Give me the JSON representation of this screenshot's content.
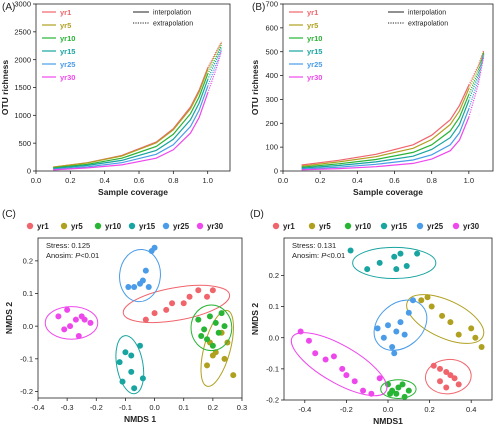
{
  "figure": {
    "panel_labels": [
      "(A)",
      "(B)",
      "(C)",
      "(D)"
    ]
  },
  "legend_line_styles": [
    {
      "label": "interpolation",
      "style": "solid"
    },
    {
      "label": "extrapolation",
      "style": "dotted"
    }
  ],
  "group_colors": {
    "yr1": "#f0646c",
    "yr5": "#b0a020",
    "yr10": "#28b434",
    "yr15": "#18a4a0",
    "yr25": "#4a9ce8",
    "yr30": "#ee48ec"
  },
  "chart_data": [
    {
      "panel": "(A)",
      "type": "line",
      "xlabel": "Sample coverage",
      "ylabel": "OTU richness",
      "xlim": [
        0.0,
        1.13
      ],
      "ylim": [
        0,
        3000
      ],
      "xticks": [
        "0.0",
        "0.2",
        "0.4",
        "0.6",
        "0.8",
        "1.0"
      ],
      "yticks": [
        "0",
        "500",
        "1000",
        "1500",
        "2000",
        "2500",
        "3000"
      ],
      "legend_position": "top-left",
      "series": [
        {
          "name": "yr1",
          "x": [
            0.1,
            0.3,
            0.5,
            0.7,
            0.8,
            0.9,
            0.95,
            1.0,
            1.05,
            1.08
          ],
          "y": [
            70,
            150,
            280,
            520,
            760,
            1150,
            1450,
            1850,
            2150,
            2320
          ]
        },
        {
          "name": "yr5",
          "x": [
            0.1,
            0.3,
            0.5,
            0.7,
            0.8,
            0.9,
            0.95,
            1.0,
            1.05,
            1.08
          ],
          "y": [
            70,
            145,
            270,
            505,
            740,
            1120,
            1420,
            1820,
            2120,
            2300
          ]
        },
        {
          "name": "yr10",
          "x": [
            0.1,
            0.3,
            0.5,
            0.7,
            0.8,
            0.9,
            0.95,
            1.0,
            1.05,
            1.08
          ],
          "y": [
            55,
            120,
            230,
            440,
            660,
            1030,
            1330,
            1740,
            2060,
            2260
          ]
        },
        {
          "name": "yr15",
          "x": [
            0.1,
            0.3,
            0.5,
            0.7,
            0.8,
            0.9,
            0.95,
            1.0,
            1.05,
            1.08
          ],
          "y": [
            45,
            100,
            190,
            370,
            570,
            920,
            1220,
            1640,
            2000,
            2230
          ]
        },
        {
          "name": "yr25",
          "x": [
            0.1,
            0.3,
            0.5,
            0.7,
            0.8,
            0.9,
            0.95,
            1.0,
            1.05,
            1.08
          ],
          "y": [
            30,
            75,
            150,
            300,
            470,
            800,
            1090,
            1520,
            1920,
            2180
          ]
        },
        {
          "name": "yr30",
          "x": [
            0.1,
            0.3,
            0.5,
            0.7,
            0.8,
            0.9,
            0.95,
            1.0,
            1.05,
            1.08
          ],
          "y": [
            20,
            55,
            110,
            230,
            380,
            680,
            960,
            1400,
            1840,
            2150
          ]
        }
      ]
    },
    {
      "panel": "(B)",
      "type": "line",
      "xlabel": "Sample coverage",
      "ylabel": "OTU richness",
      "xlim": [
        0.0,
        1.13
      ],
      "ylim": [
        0,
        700
      ],
      "xticks": [
        "0.0",
        "0.2",
        "0.4",
        "0.6",
        "0.8",
        "1.0"
      ],
      "yticks": [
        "0",
        "100",
        "200",
        "300",
        "400",
        "500",
        "600",
        "700"
      ],
      "legend_position": "top-left",
      "series": [
        {
          "name": "yr1",
          "x": [
            0.1,
            0.3,
            0.5,
            0.7,
            0.8,
            0.9,
            0.95,
            1.0,
            1.05,
            1.08
          ],
          "y": [
            25,
            45,
            70,
            110,
            150,
            215,
            275,
            360,
            440,
            505
          ]
        },
        {
          "name": "yr5",
          "x": [
            0.1,
            0.3,
            0.5,
            0.7,
            0.8,
            0.9,
            0.95,
            1.0,
            1.05,
            1.08
          ],
          "y": [
            20,
            38,
            60,
            95,
            132,
            195,
            252,
            345,
            430,
            500
          ]
        },
        {
          "name": "yr10",
          "x": [
            0.1,
            0.3,
            0.5,
            0.7,
            0.8,
            0.9,
            0.95,
            1.0,
            1.05,
            1.08
          ],
          "y": [
            16,
            30,
            48,
            78,
            110,
            168,
            225,
            320,
            415,
            495
          ]
        },
        {
          "name": "yr15",
          "x": [
            0.1,
            0.3,
            0.5,
            0.7,
            0.8,
            0.9,
            0.95,
            1.0,
            1.05,
            1.08
          ],
          "y": [
            12,
            23,
            38,
            62,
            90,
            140,
            195,
            295,
            400,
            490
          ]
        },
        {
          "name": "yr25",
          "x": [
            0.1,
            0.3,
            0.5,
            0.7,
            0.8,
            0.9,
            0.95,
            1.0,
            1.05,
            1.08
          ],
          "y": [
            8,
            16,
            28,
            46,
            68,
            110,
            160,
            260,
            380,
            485
          ]
        },
        {
          "name": "yr30",
          "x": [
            0.1,
            0.3,
            0.5,
            0.7,
            0.8,
            0.9,
            0.95,
            1.0,
            1.05,
            1.08
          ],
          "y": [
            5,
            10,
            18,
            32,
            50,
            85,
            130,
            225,
            360,
            480
          ]
        }
      ]
    },
    {
      "panel": "(C)",
      "type": "scatter",
      "xlabel": "NMDS 1",
      "ylabel": "NMDS 2",
      "xlim": [
        -0.4,
        0.3
      ],
      "ylim": [
        -0.22,
        0.27
      ],
      "xticks": [
        "-0.4",
        "-0.3",
        "-0.2",
        "-0.1",
        "0.0",
        "0.1",
        "0.2",
        "0.3"
      ],
      "yticks": [
        "-0.2",
        "-0.1",
        "0.0",
        "0.1",
        "0.2"
      ],
      "annotations": [
        "Stress: 0.125",
        "Anosim: P<0.01"
      ],
      "legend_position": "top",
      "series": [
        {
          "name": "yr1",
          "ellipse": {
            "cx": 0.075,
            "cy": 0.068,
            "rx": 0.185,
            "ry": 0.05,
            "angle_deg": 10
          },
          "points": [
            [
              -0.03,
              0.02
            ],
            [
              0.0,
              0.04
            ],
            [
              0.04,
              0.05
            ],
            [
              0.06,
              0.07
            ],
            [
              0.1,
              0.07
            ],
            [
              0.12,
              0.09
            ],
            [
              0.15,
              0.11
            ],
            [
              0.18,
              0.09
            ],
            [
              0.2,
              0.11
            ]
          ]
        },
        {
          "name": "yr5",
          "ellipse": {
            "cx": 0.215,
            "cy": -0.068,
            "rx": 0.045,
            "ry": 0.12,
            "angle_deg": -15
          },
          "points": [
            [
              0.19,
              -0.05
            ],
            [
              0.21,
              -0.08
            ],
            [
              0.23,
              -0.02
            ],
            [
              0.18,
              -0.12
            ],
            [
              0.2,
              -0.09
            ],
            [
              0.25,
              -0.05
            ],
            [
              0.27,
              -0.15
            ],
            [
              0.24,
              -0.1
            ]
          ]
        },
        {
          "name": "yr10",
          "ellipse": {
            "cx": 0.195,
            "cy": -0.005,
            "rx": 0.07,
            "ry": 0.07,
            "angle_deg": 0
          },
          "points": [
            [
              0.15,
              0.02
            ],
            [
              0.17,
              -0.01
            ],
            [
              0.19,
              0.03
            ],
            [
              0.21,
              0.01
            ],
            [
              0.23,
              0.04
            ],
            [
              0.18,
              -0.04
            ],
            [
              0.2,
              -0.06
            ],
            [
              0.16,
              -0.03
            ],
            [
              0.22,
              -0.02
            ],
            [
              0.24,
              0.0
            ]
          ]
        },
        {
          "name": "yr15",
          "ellipse": {
            "cx": -0.085,
            "cy": -0.118,
            "rx": 0.045,
            "ry": 0.09,
            "angle_deg": 10
          },
          "points": [
            [
              -0.1,
              -0.08
            ],
            [
              -0.08,
              -0.09
            ],
            [
              -0.05,
              -0.06
            ],
            [
              -0.12,
              -0.11
            ],
            [
              -0.08,
              -0.14
            ],
            [
              -0.11,
              -0.17
            ],
            [
              -0.07,
              -0.19
            ],
            [
              -0.04,
              -0.16
            ]
          ]
        },
        {
          "name": "yr25",
          "ellipse": {
            "cx": -0.05,
            "cy": 0.155,
            "rx": 0.07,
            "ry": 0.08,
            "angle_deg": -5
          },
          "points": [
            [
              -0.09,
              0.12
            ],
            [
              -0.07,
              0.12
            ],
            [
              -0.05,
              0.13
            ],
            [
              -0.04,
              0.14
            ],
            [
              -0.03,
              0.17
            ],
            [
              -0.02,
              0.12
            ],
            [
              -0.01,
              0.23
            ],
            [
              0.0,
              0.24
            ]
          ]
        },
        {
          "name": "yr30",
          "ellipse": {
            "cx": -0.285,
            "cy": 0.01,
            "rx": 0.09,
            "ry": 0.05,
            "angle_deg": 0
          },
          "points": [
            [
              -0.33,
              0.03
            ],
            [
              -0.3,
              0.05
            ],
            [
              -0.27,
              0.02
            ],
            [
              -0.25,
              0.03
            ],
            [
              -0.24,
              0.02
            ],
            [
              -0.29,
              0.0
            ],
            [
              -0.31,
              -0.01
            ],
            [
              -0.26,
              -0.03
            ],
            [
              -0.22,
              0.01
            ]
          ]
        }
      ]
    },
    {
      "panel": "(D)",
      "type": "scatter",
      "xlabel": "NMDS1",
      "ylabel": "NMDS 2",
      "xlim": [
        -0.5,
        0.5
      ],
      "ylim": [
        -0.2,
        0.32
      ],
      "xticks": [
        "-0.4",
        "-0.2",
        "0.0",
        "0.2",
        "0.4"
      ],
      "yticks": [
        "-0.2",
        "-0.1",
        "0.0",
        "0.1",
        "0.2"
      ],
      "annotations": [
        "Stress: 0.131",
        "Anosim: P<0.01"
      ],
      "legend_position": "top",
      "series": [
        {
          "name": "yr1",
          "ellipse": {
            "cx": 0.29,
            "cy": -0.125,
            "rx": 0.11,
            "ry": 0.055,
            "angle_deg": 5
          },
          "points": [
            [
              0.22,
              -0.09
            ],
            [
              0.25,
              -0.1
            ],
            [
              0.28,
              -0.11
            ],
            [
              0.3,
              -0.12
            ],
            [
              0.32,
              -0.13
            ],
            [
              0.34,
              -0.15
            ],
            [
              0.28,
              -0.16
            ],
            [
              0.25,
              -0.14
            ]
          ]
        },
        {
          "name": "yr5",
          "ellipse": {
            "cx": 0.275,
            "cy": 0.06,
            "rx": 0.2,
            "ry": 0.06,
            "angle_deg": -25
          },
          "points": [
            [
              0.16,
              0.12
            ],
            [
              0.19,
              0.13
            ],
            [
              0.21,
              0.1
            ],
            [
              0.26,
              0.07
            ],
            [
              0.3,
              0.05
            ],
            [
              0.34,
              0.01
            ],
            [
              0.4,
              0.03
            ],
            [
              0.42,
              0.0
            ],
            [
              0.45,
              -0.03
            ]
          ]
        },
        {
          "name": "yr10",
          "ellipse": {
            "cx": 0.05,
            "cy": -0.165,
            "rx": 0.085,
            "ry": 0.03,
            "angle_deg": 0
          },
          "points": [
            [
              0.0,
              -0.15
            ],
            [
              0.02,
              -0.17
            ],
            [
              0.05,
              -0.16
            ],
            [
              0.07,
              -0.15
            ],
            [
              0.1,
              -0.17
            ],
            [
              0.04,
              -0.18
            ],
            [
              0.08,
              -0.19
            ],
            [
              0.01,
              -0.18
            ]
          ]
        },
        {
          "name": "yr15",
          "ellipse": {
            "cx": 0.03,
            "cy": 0.24,
            "rx": 0.2,
            "ry": 0.05,
            "angle_deg": 0
          },
          "points": [
            [
              -0.18,
              0.28
            ],
            [
              -0.1,
              0.22
            ],
            [
              -0.04,
              0.24
            ],
            [
              0.03,
              0.26
            ],
            [
              0.04,
              0.22
            ],
            [
              0.06,
              0.27
            ],
            [
              0.09,
              0.23
            ],
            [
              0.14,
              0.27
            ]
          ]
        },
        {
          "name": "yr25",
          "ellipse": {
            "cx": 0.06,
            "cy": 0.04,
            "rx": 0.14,
            "ry": 0.07,
            "angle_deg": 40
          },
          "points": [
            [
              -0.05,
              0.03
            ],
            [
              -0.02,
              0.0
            ],
            [
              0.0,
              0.04
            ],
            [
              0.02,
              -0.03
            ],
            [
              0.04,
              0.02
            ],
            [
              0.06,
              0.05
            ],
            [
              0.08,
              0.01
            ],
            [
              0.1,
              0.08
            ],
            [
              0.12,
              0.12
            ],
            [
              0.03,
              -0.05
            ]
          ]
        },
        {
          "name": "yr30",
          "ellipse": {
            "cx": -0.235,
            "cy": -0.085,
            "rx": 0.26,
            "ry": 0.06,
            "angle_deg": -30
          },
          "points": [
            [
              -0.42,
              0.02
            ],
            [
              -0.38,
              -0.01
            ],
            [
              -0.35,
              -0.05
            ],
            [
              -0.3,
              -0.07
            ],
            [
              -0.26,
              -0.06
            ],
            [
              -0.22,
              -0.1
            ],
            [
              -0.2,
              -0.12
            ],
            [
              -0.16,
              -0.14
            ],
            [
              -0.12,
              -0.17
            ],
            [
              -0.08,
              -0.18
            ],
            [
              -0.04,
              -0.13
            ]
          ]
        }
      ]
    }
  ]
}
